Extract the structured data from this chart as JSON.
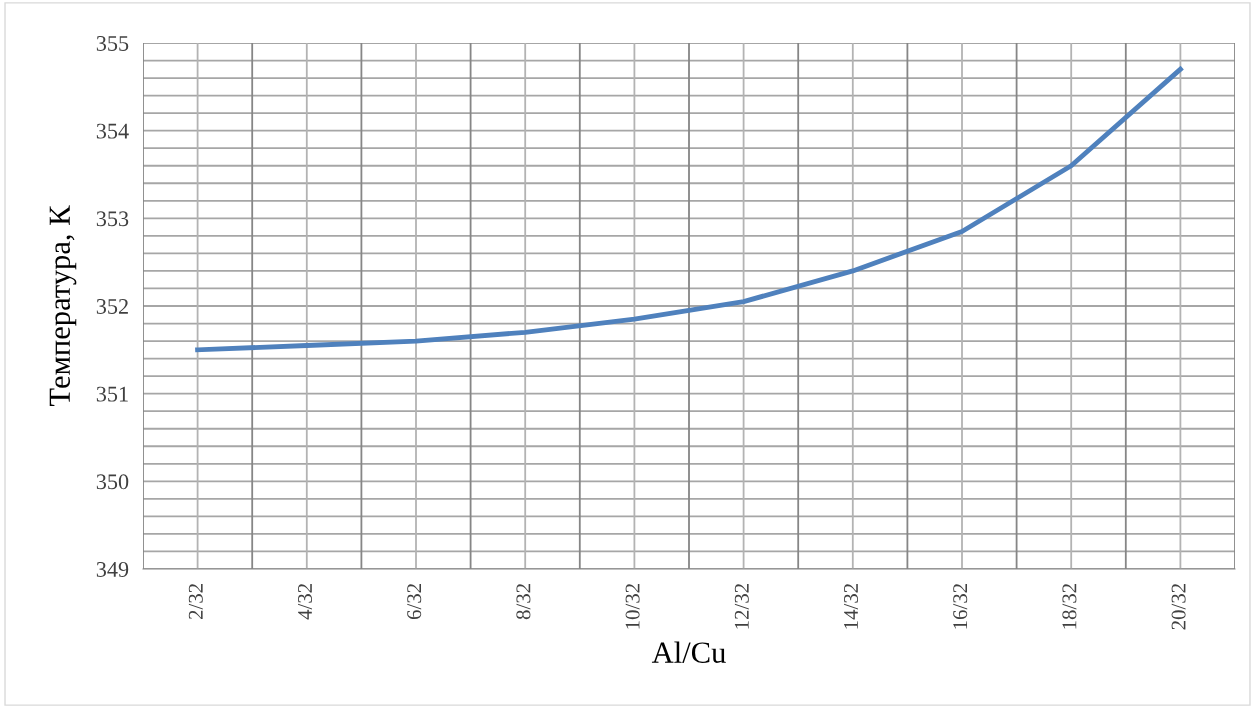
{
  "chart_data": {
    "type": "line",
    "xlabel": "Al/Cu",
    "ylabel": "Температура, К",
    "categories": [
      "2/32",
      "4/32",
      "6/32",
      "8/32",
      "10/32",
      "12/32",
      "14/32",
      "16/32",
      "18/32",
      "20/32"
    ],
    "series": [
      {
        "color": "#4f81bd",
        "values": [
          351.5,
          351.55,
          351.6,
          351.7,
          351.85,
          352.05,
          352.4,
          352.85,
          353.6,
          354.7
        ]
      }
    ],
    "ylim": [
      349,
      355
    ],
    "yticks": [
      349,
      350,
      351,
      352,
      353,
      354,
      355
    ],
    "grid": true,
    "marker": "none",
    "line_style": "solid",
    "legend": false
  }
}
